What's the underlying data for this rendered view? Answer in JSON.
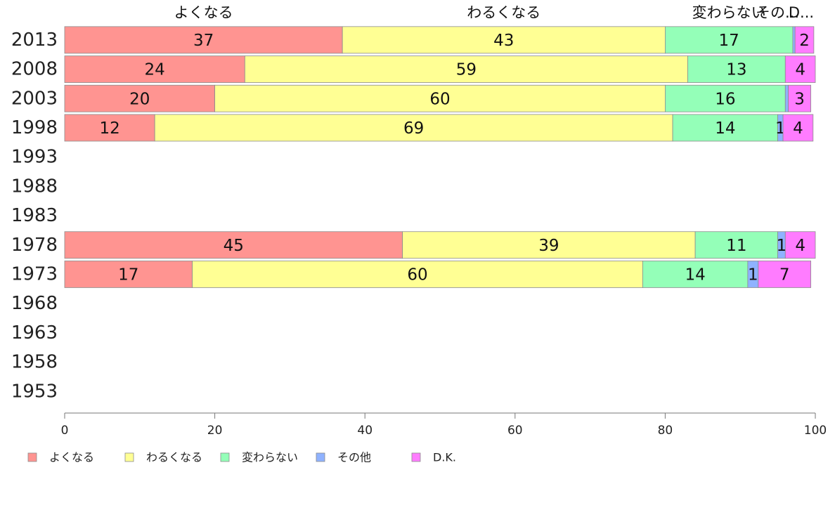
{
  "chart_data": {
    "type": "bar",
    "orientation": "horizontal",
    "stacked": true,
    "categories": [
      "2013",
      "2008",
      "2003",
      "1998",
      "1993",
      "1988",
      "1983",
      "1978",
      "1973",
      "1968",
      "1963",
      "1958",
      "1953"
    ],
    "series": [
      {
        "name": "よくなる",
        "color": "#ff9491",
        "values": [
          37,
          24,
          20,
          12,
          null,
          null,
          null,
          45,
          17,
          null,
          null,
          null,
          null
        ]
      },
      {
        "name": "わるくなる",
        "color": "#ffff94",
        "values": [
          43,
          59,
          60,
          69,
          null,
          null,
          null,
          39,
          60,
          null,
          null,
          null,
          null
        ]
      },
      {
        "name": "変わらない",
        "color": "#94ffb8",
        "values": [
          17,
          13,
          16,
          14,
          null,
          null,
          null,
          11,
          14,
          null,
          null,
          null,
          null
        ]
      },
      {
        "name": "その他",
        "color": "#8fb2ff",
        "values": [
          0.3,
          0,
          0.4,
          0.7,
          null,
          null,
          null,
          1,
          1.4,
          null,
          null,
          null,
          null
        ]
      },
      {
        "name": "D.K.",
        "color": "#ff7cff",
        "values": [
          2.5,
          4,
          3,
          4,
          null,
          null,
          null,
          4,
          7,
          null,
          null,
          null,
          null
        ]
      }
    ],
    "segment_labels": [
      [
        "37",
        "43",
        "17",
        "",
        "2"
      ],
      [
        "24",
        "59",
        "13",
        "",
        "4"
      ],
      [
        "20",
        "60",
        "16",
        "",
        "3"
      ],
      [
        "12",
        "69",
        "14",
        "1",
        "4"
      ],
      null,
      null,
      null,
      [
        "45",
        "39",
        "11",
        "1",
        "4"
      ],
      [
        "17",
        "60",
        "14",
        "1",
        "7"
      ],
      null,
      null,
      null,
      null
    ],
    "column_headers": [
      "よくなる",
      "わるくなる",
      "変わらない",
      "その...",
      "D..."
    ],
    "xlim": [
      0,
      100
    ],
    "xticks": [
      0,
      20,
      40,
      60,
      80,
      100
    ],
    "legend": [
      "よくなる",
      "わるくなる",
      "変わらない",
      "その他",
      "D.K."
    ],
    "legend_position": "bottom-left",
    "grid": false
  }
}
